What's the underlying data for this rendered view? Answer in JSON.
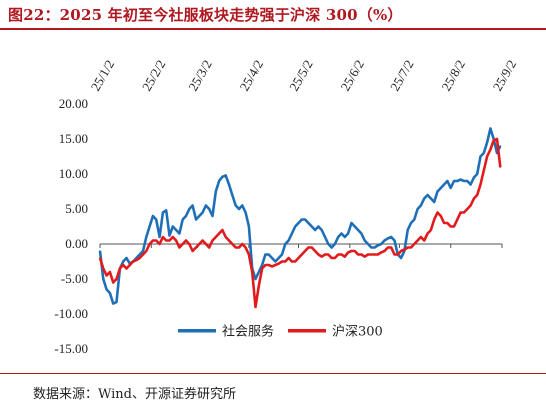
{
  "figure": {
    "title": "图22：2025 年初至今社服板块走势强于沪深 300（%）",
    "source": "数据来源：Wind、开源证券研究所",
    "title_color": "#b01820"
  },
  "chart_data": {
    "type": "line",
    "title": "",
    "xlabel": "",
    "ylabel": "",
    "ylim": [
      -15,
      20
    ],
    "y_ticks": [
      "20.00",
      "15.00",
      "10.00",
      "5.00",
      "0.00",
      "-5.00",
      "-10.00",
      "-15.00"
    ],
    "y_tick_values": [
      20,
      15,
      10,
      5,
      0,
      -5,
      -10,
      -15
    ],
    "x_ticks": [
      "25/1/2",
      "25/2/2",
      "25/3/2",
      "25/4/2",
      "25/5/2",
      "25/6/2",
      "25/7/2",
      "25/8/2",
      "25/9/2"
    ],
    "x_tick_dates": [
      "2025-01-02",
      "2025-02-02",
      "2025-03-02",
      "2025-04-02",
      "2025-05-02",
      "2025-06-02",
      "2025-07-02",
      "2025-08-02",
      "2025-09-02"
    ],
    "xlim": [
      "2025-01-02",
      "2025-09-02"
    ],
    "grid": false,
    "legend_position": "bottom-center",
    "series": [
      {
        "name": "社会服务",
        "color": "#1f6fb8",
        "x": [
          "2025-01-02",
          "2025-01-04",
          "2025-01-06",
          "2025-01-08",
          "2025-01-10",
          "2025-01-12",
          "2025-01-14",
          "2025-01-16",
          "2025-01-18",
          "2025-01-20",
          "2025-01-22",
          "2025-01-24",
          "2025-01-26",
          "2025-01-28",
          "2025-01-30",
          "2025-02-01",
          "2025-02-03",
          "2025-02-05",
          "2025-02-07",
          "2025-02-09",
          "2025-02-11",
          "2025-02-13",
          "2025-02-15",
          "2025-02-17",
          "2025-02-19",
          "2025-02-21",
          "2025-02-23",
          "2025-02-25",
          "2025-02-27",
          "2025-03-01",
          "2025-03-03",
          "2025-03-05",
          "2025-03-07",
          "2025-03-09",
          "2025-03-11",
          "2025-03-13",
          "2025-03-15",
          "2025-03-17",
          "2025-03-19",
          "2025-03-21",
          "2025-03-23",
          "2025-03-25",
          "2025-03-27",
          "2025-03-29",
          "2025-03-31",
          "2025-04-02",
          "2025-04-04",
          "2025-04-06",
          "2025-04-08",
          "2025-04-10",
          "2025-04-12",
          "2025-04-14",
          "2025-04-16",
          "2025-04-18",
          "2025-04-20",
          "2025-04-22",
          "2025-04-24",
          "2025-04-26",
          "2025-04-28",
          "2025-04-30",
          "2025-05-02",
          "2025-05-04",
          "2025-05-06",
          "2025-05-08",
          "2025-05-10",
          "2025-05-12",
          "2025-05-14",
          "2025-05-16",
          "2025-05-18",
          "2025-05-20",
          "2025-05-22",
          "2025-05-24",
          "2025-05-26",
          "2025-05-28",
          "2025-05-30",
          "2025-06-01",
          "2025-06-03",
          "2025-06-05",
          "2025-06-07",
          "2025-06-09",
          "2025-06-11",
          "2025-06-13",
          "2025-06-15",
          "2025-06-17",
          "2025-06-19",
          "2025-06-21",
          "2025-06-23",
          "2025-06-25",
          "2025-06-27",
          "2025-06-29",
          "2025-07-01",
          "2025-07-03",
          "2025-07-05",
          "2025-07-07",
          "2025-07-09",
          "2025-07-11",
          "2025-07-13",
          "2025-07-15",
          "2025-07-17",
          "2025-07-19",
          "2025-07-21",
          "2025-07-23",
          "2025-07-25",
          "2025-07-27",
          "2025-07-29",
          "2025-07-31",
          "2025-08-02",
          "2025-08-04",
          "2025-08-06",
          "2025-08-08",
          "2025-08-10",
          "2025-08-12",
          "2025-08-14",
          "2025-08-16",
          "2025-08-18",
          "2025-08-20",
          "2025-08-22",
          "2025-08-24",
          "2025-08-26",
          "2025-08-28",
          "2025-08-30",
          "2025-09-01"
        ],
        "values": [
          -1.0,
          -5.0,
          -6.5,
          -7.0,
          -8.5,
          -8.3,
          -3.5,
          -2.5,
          -2.0,
          -2.8,
          -2.5,
          -2.0,
          -1.5,
          -1.0,
          1.0,
          2.5,
          4.0,
          3.5,
          1.0,
          4.5,
          4.8,
          1.2,
          2.5,
          2.0,
          1.5,
          3.5,
          4.0,
          5.0,
          5.5,
          3.5,
          4.0,
          4.5,
          5.5,
          5.0,
          4.0,
          7.5,
          9.0,
          9.6,
          9.8,
          8.5,
          7.0,
          5.5,
          5.0,
          5.5,
          4.5,
          2.5,
          -3.5,
          -5.0,
          -4.0,
          -3.0,
          -1.5,
          -1.5,
          -2.0,
          -2.5,
          -2.0,
          -1.5,
          0.0,
          0.5,
          1.5,
          2.5,
          3.0,
          3.5,
          3.5,
          3.0,
          2.5,
          2.0,
          2.5,
          2.0,
          1.0,
          0.0,
          -0.5,
          0.0,
          1.0,
          1.5,
          1.0,
          1.5,
          3.0,
          2.5,
          2.0,
          1.5,
          0.5,
          0.0,
          -0.5,
          -0.5,
          -0.2,
          0.0,
          0.5,
          0.8,
          1.0,
          0.5,
          -1.5,
          -2.0,
          -1.0,
          2.0,
          3.0,
          3.5,
          5.0,
          5.5,
          6.5,
          7.0,
          6.5,
          6.0,
          7.5,
          8.0,
          8.5,
          9.0,
          8.0,
          9.0,
          9.0,
          9.2,
          9.0,
          9.0,
          8.5,
          9.5,
          10.0,
          12.5,
          13.0,
          14.5,
          16.5,
          15.0,
          13.0,
          14.0
        ]
      },
      {
        "name": "沪深300",
        "color": "#e31a1c",
        "x": [
          "2025-01-02",
          "2025-01-04",
          "2025-01-06",
          "2025-01-08",
          "2025-01-10",
          "2025-01-12",
          "2025-01-14",
          "2025-01-16",
          "2025-01-18",
          "2025-01-20",
          "2025-01-22",
          "2025-01-24",
          "2025-01-26",
          "2025-01-28",
          "2025-01-30",
          "2025-02-01",
          "2025-02-03",
          "2025-02-05",
          "2025-02-07",
          "2025-02-09",
          "2025-02-11",
          "2025-02-13",
          "2025-02-15",
          "2025-02-17",
          "2025-02-19",
          "2025-02-21",
          "2025-02-23",
          "2025-02-25",
          "2025-02-27",
          "2025-03-01",
          "2025-03-03",
          "2025-03-05",
          "2025-03-07",
          "2025-03-09",
          "2025-03-11",
          "2025-03-13",
          "2025-03-15",
          "2025-03-17",
          "2025-03-19",
          "2025-03-21",
          "2025-03-23",
          "2025-03-25",
          "2025-03-27",
          "2025-03-29",
          "2025-03-31",
          "2025-04-02",
          "2025-04-04",
          "2025-04-06",
          "2025-04-08",
          "2025-04-10",
          "2025-04-12",
          "2025-04-14",
          "2025-04-16",
          "2025-04-18",
          "2025-04-20",
          "2025-04-22",
          "2025-04-24",
          "2025-04-26",
          "2025-04-28",
          "2025-04-30",
          "2025-05-02",
          "2025-05-04",
          "2025-05-06",
          "2025-05-08",
          "2025-05-10",
          "2025-05-12",
          "2025-05-14",
          "2025-05-16",
          "2025-05-18",
          "2025-05-20",
          "2025-05-22",
          "2025-05-24",
          "2025-05-26",
          "2025-05-28",
          "2025-05-30",
          "2025-06-01",
          "2025-06-03",
          "2025-06-05",
          "2025-06-07",
          "2025-06-09",
          "2025-06-11",
          "2025-06-13",
          "2025-06-15",
          "2025-06-17",
          "2025-06-19",
          "2025-06-21",
          "2025-06-23",
          "2025-06-25",
          "2025-06-27",
          "2025-06-29",
          "2025-07-01",
          "2025-07-03",
          "2025-07-05",
          "2025-07-07",
          "2025-07-09",
          "2025-07-11",
          "2025-07-13",
          "2025-07-15",
          "2025-07-17",
          "2025-07-19",
          "2025-07-21",
          "2025-07-23",
          "2025-07-25",
          "2025-07-27",
          "2025-07-29",
          "2025-07-31",
          "2025-08-02",
          "2025-08-04",
          "2025-08-06",
          "2025-08-08",
          "2025-08-10",
          "2025-08-12",
          "2025-08-14",
          "2025-08-16",
          "2025-08-18",
          "2025-08-20",
          "2025-08-22",
          "2025-08-24",
          "2025-08-26",
          "2025-08-28",
          "2025-08-30",
          "2025-09-01"
        ],
        "values": [
          -2.0,
          -3.5,
          -4.5,
          -4.0,
          -5.5,
          -5.0,
          -3.5,
          -3.0,
          -3.5,
          -3.0,
          -2.5,
          -2.3,
          -2.0,
          -1.5,
          -1.0,
          0.0,
          0.5,
          0.5,
          0.0,
          1.0,
          0.5,
          0.5,
          1.0,
          0.5,
          -0.5,
          0.0,
          0.5,
          0.0,
          -1.0,
          -0.5,
          0.0,
          0.5,
          0.0,
          -0.5,
          0.5,
          1.0,
          1.5,
          2.0,
          1.0,
          0.5,
          0.0,
          -0.5,
          -0.5,
          0.0,
          -0.5,
          -1.5,
          -4.0,
          -9.0,
          -6.0,
          -3.5,
          -3.0,
          -3.0,
          -3.2,
          -3.0,
          -2.8,
          -2.5,
          -2.5,
          -2.0,
          -2.5,
          -2.5,
          -2.0,
          -1.5,
          -1.0,
          -0.5,
          -0.5,
          -1.0,
          -1.5,
          -1.8,
          -1.5,
          -1.5,
          -2.0,
          -2.0,
          -1.5,
          -1.5,
          -1.8,
          -1.2,
          -1.0,
          -1.0,
          -1.5,
          -1.5,
          -1.8,
          -1.5,
          -1.5,
          -1.5,
          -1.5,
          -1.2,
          -1.0,
          -0.5,
          -0.5,
          -1.5,
          -1.5,
          -1.0,
          -0.8,
          -0.5,
          -0.5,
          0.0,
          0.5,
          1.0,
          0.5,
          1.5,
          2.0,
          3.5,
          4.5,
          4.0,
          3.0,
          3.0,
          2.5,
          2.5,
          3.5,
          4.5,
          4.5,
          5.0,
          5.5,
          6.5,
          7.0,
          8.5,
          10.5,
          12.5,
          13.5,
          14.8,
          15.0,
          11.0
        ]
      }
    ]
  }
}
